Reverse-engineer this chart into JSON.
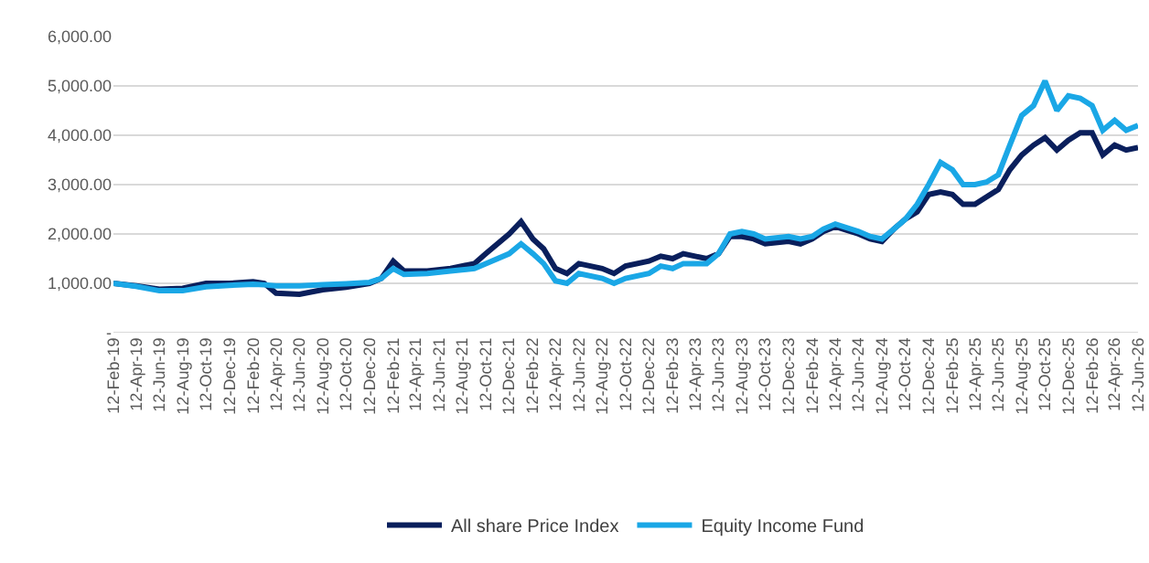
{
  "chart_data": {
    "type": "line",
    "x": [
      "2019-02-12",
      "2019-04-12",
      "2019-06-12",
      "2019-08-12",
      "2019-10-12",
      "2019-12-12",
      "2020-02-12",
      "2020-03-12",
      "2020-04-12",
      "2020-06-12",
      "2020-08-12",
      "2020-10-12",
      "2020-12-12",
      "2021-01-12",
      "2021-02-12",
      "2021-03-12",
      "2021-05-12",
      "2021-07-12",
      "2021-09-12",
      "2021-10-12",
      "2021-12-12",
      "2022-01-12",
      "2022-02-12",
      "2022-03-12",
      "2022-04-12",
      "2022-05-12",
      "2022-06-12",
      "2022-08-12",
      "2022-09-12",
      "2022-10-12",
      "2022-12-12",
      "2023-01-12",
      "2023-02-12",
      "2023-03-12",
      "2023-05-12",
      "2023-06-12",
      "2023-07-12",
      "2023-08-12",
      "2023-09-12",
      "2023-10-12",
      "2023-12-12",
      "2024-01-12",
      "2024-02-12",
      "2024-03-12",
      "2024-04-12",
      "2024-06-12",
      "2024-07-12",
      "2024-08-12",
      "2024-09-12",
      "2024-10-12",
      "2024-11-12",
      "2024-12-12",
      "2025-01-12",
      "2025-02-12",
      "2025-03-12",
      "2025-04-12",
      "2025-05-12",
      "2025-06-12",
      "2025-07-12",
      "2025-08-12",
      "2025-09-12",
      "2025-10-12",
      "2025-11-12",
      "2025-12-12",
      "2026-01-12",
      "2026-02-12",
      "2026-03-12",
      "2026-04-12",
      "2026-05-12",
      "2026-06-12"
    ],
    "series": [
      {
        "name": "All share Price Index",
        "color": "#0a1f5c",
        "values": [
          1000,
          950,
          880,
          900,
          1000,
          1000,
          1030,
          1000,
          800,
          780,
          870,
          920,
          1000,
          1100,
          1450,
          1250,
          1250,
          1300,
          1400,
          1600,
          2000,
          2250,
          1900,
          1700,
          1300,
          1200,
          1400,
          1300,
          1200,
          1350,
          1450,
          1550,
          1500,
          1600,
          1500,
          1600,
          1950,
          1950,
          1900,
          1800,
          1850,
          1800,
          1900,
          2050,
          2150,
          2000,
          1900,
          1850,
          2100,
          2300,
          2450,
          2800,
          2850,
          2800,
          2600,
          2600,
          2750,
          2900,
          3300,
          3600,
          3800,
          3950,
          3700,
          3900,
          4050,
          4050,
          3600,
          3800,
          3700,
          3750
        ]
      },
      {
        "name": "Equity Income Fund",
        "color": "#1aa7e6",
        "values": [
          1000,
          940,
          850,
          850,
          930,
          960,
          980,
          970,
          950,
          950,
          970,
          990,
          1020,
          1100,
          1300,
          1180,
          1200,
          1250,
          1300,
          1400,
          1600,
          1800,
          1600,
          1400,
          1050,
          1000,
          1200,
          1100,
          1000,
          1100,
          1200,
          1350,
          1300,
          1400,
          1400,
          1600,
          2000,
          2050,
          2000,
          1900,
          1950,
          1900,
          1950,
          2100,
          2200,
          2050,
          1950,
          1900,
          2100,
          2300,
          2600,
          3000,
          3450,
          3300,
          3000,
          3000,
          3050,
          3200,
          3800,
          4400,
          4600,
          5100,
          4500,
          4800,
          4750,
          4600,
          4100,
          4300,
          4100,
          4200
        ]
      }
    ],
    "xlim": [
      "2019-02-12",
      "2026-06-12"
    ],
    "xticks": [
      {
        "value": "2019-02-12",
        "label": "12-Feb-19"
      },
      {
        "value": "2019-04-12",
        "label": "12-Apr-19"
      },
      {
        "value": "2019-06-12",
        "label": "12-Jun-19"
      },
      {
        "value": "2019-08-12",
        "label": "12-Aug-19"
      },
      {
        "value": "2019-10-12",
        "label": "12-Oct-19"
      },
      {
        "value": "2019-12-12",
        "label": "12-Dec-19"
      },
      {
        "value": "2020-02-12",
        "label": "12-Feb-20"
      },
      {
        "value": "2020-04-12",
        "label": "12-Apr-20"
      },
      {
        "value": "2020-06-12",
        "label": "12-Jun-20"
      },
      {
        "value": "2020-08-12",
        "label": "12-Aug-20"
      },
      {
        "value": "2020-10-12",
        "label": "12-Oct-20"
      },
      {
        "value": "2020-12-12",
        "label": "12-Dec-20"
      },
      {
        "value": "2021-02-12",
        "label": "12-Feb-21"
      },
      {
        "value": "2021-04-12",
        "label": "12-Apr-21"
      },
      {
        "value": "2021-06-12",
        "label": "12-Jun-21"
      },
      {
        "value": "2021-08-12",
        "label": "12-Aug-21"
      },
      {
        "value": "2021-10-12",
        "label": "12-Oct-21"
      },
      {
        "value": "2021-12-12",
        "label": "12-Dec-21"
      },
      {
        "value": "2022-02-12",
        "label": "12-Feb-22"
      },
      {
        "value": "2022-04-12",
        "label": "12-Apr-22"
      },
      {
        "value": "2022-06-12",
        "label": "12-Jun-22"
      },
      {
        "value": "2022-08-12",
        "label": "12-Aug-22"
      },
      {
        "value": "2022-10-12",
        "label": "12-Oct-22"
      },
      {
        "value": "2022-12-12",
        "label": "12-Dec-22"
      },
      {
        "value": "2023-02-12",
        "label": "12-Feb-23"
      },
      {
        "value": "2023-04-12",
        "label": "12-Apr-23"
      },
      {
        "value": "2023-06-12",
        "label": "12-Jun-23"
      },
      {
        "value": "2023-08-12",
        "label": "12-Aug-23"
      },
      {
        "value": "2023-10-12",
        "label": "12-Oct-23"
      },
      {
        "value": "2023-12-12",
        "label": "12-Dec-23"
      },
      {
        "value": "2024-02-12",
        "label": "12-Feb-24"
      },
      {
        "value": "2024-04-12",
        "label": "12-Apr-24"
      },
      {
        "value": "2024-06-12",
        "label": "12-Jun-24"
      },
      {
        "value": "2024-08-12",
        "label": "12-Aug-24"
      },
      {
        "value": "2024-10-12",
        "label": "12-Oct-24"
      },
      {
        "value": "2024-12-12",
        "label": "12-Dec-24"
      },
      {
        "value": "2025-02-12",
        "label": "12-Feb-25"
      },
      {
        "value": "2025-04-12",
        "label": "12-Apr-25"
      },
      {
        "value": "2025-06-12",
        "label": "12-Jun-25"
      },
      {
        "value": "2025-08-12",
        "label": "12-Aug-25"
      },
      {
        "value": "2025-10-12",
        "label": "12-Oct-25"
      },
      {
        "value": "2025-12-12",
        "label": "12-Dec-25"
      },
      {
        "value": "2026-02-12",
        "label": "12-Feb-26"
      },
      {
        "value": "2026-04-12",
        "label": "12-Apr-26"
      },
      {
        "value": "2026-06-12",
        "label": "12-Jun-26"
      }
    ],
    "ylim": [
      0,
      6000
    ],
    "yticks": [
      {
        "value": 0,
        "label": "-"
      },
      {
        "value": 1000,
        "label": "1,000.00"
      },
      {
        "value": 2000,
        "label": "2,000.00"
      },
      {
        "value": 3000,
        "label": "3,000.00"
      },
      {
        "value": 4000,
        "label": "4,000.00"
      },
      {
        "value": 5000,
        "label": "5,000.00"
      },
      {
        "value": 6000,
        "label": "6,000.00"
      }
    ],
    "grid": "y",
    "legend": "bottom",
    "marker": "none",
    "line_style": "solid"
  }
}
